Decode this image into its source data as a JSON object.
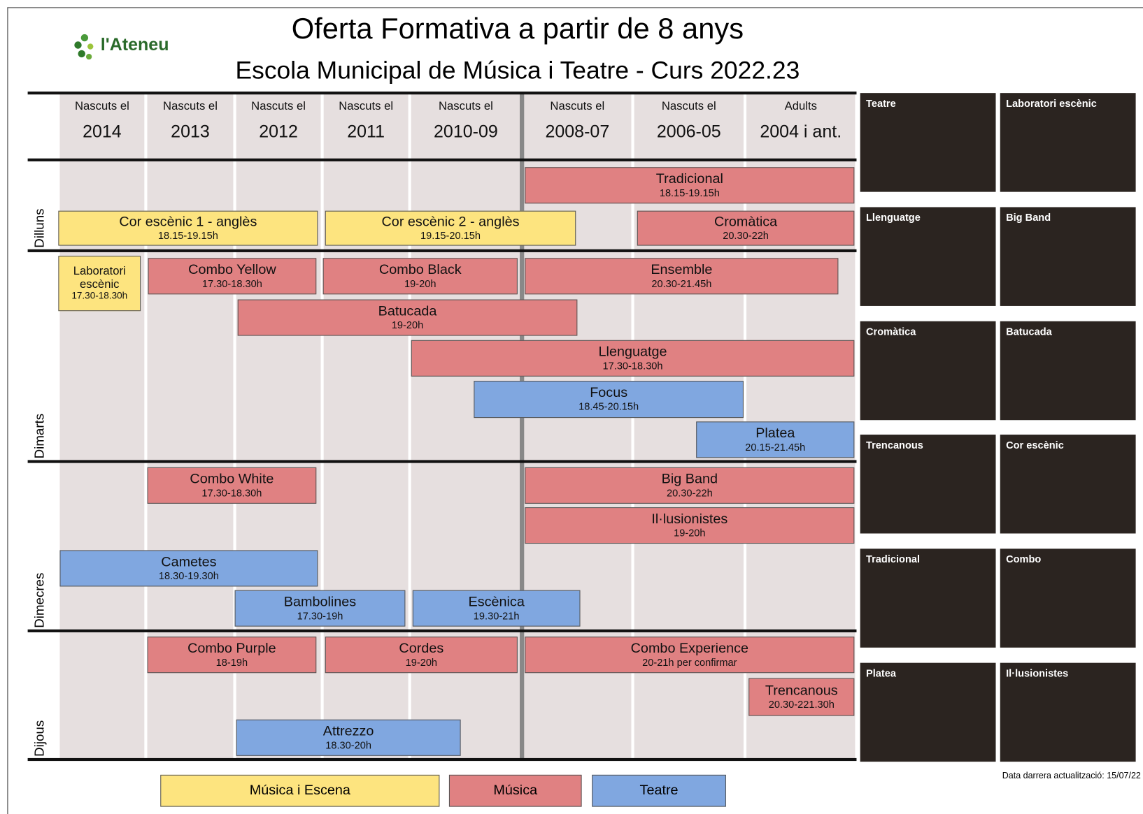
{
  "header": {
    "logo": "l'Ateneu",
    "title": "Oferta Formativa a partir de 8 anys",
    "subtitle": "Escola Municipal de Música i Teatre - Curs 2022.23"
  },
  "columns": [
    {
      "label": "Nascuts el",
      "year": "2014"
    },
    {
      "label": "Nascuts el",
      "year": "2013"
    },
    {
      "label": "Nascuts el",
      "year": "2012"
    },
    {
      "label": "Nascuts el",
      "year": "2011"
    },
    {
      "label": "Nascuts el",
      "year": "2010-09"
    },
    {
      "label": "Nascuts el",
      "year": "2008-07"
    },
    {
      "label": "Nascuts el",
      "year": "2006-05"
    },
    {
      "label": "Adults",
      "year": "2004 i ant."
    }
  ],
  "categories": [
    {
      "name": "Música i Escena",
      "color": "#fde47f"
    },
    {
      "name": "Música",
      "color": "#e08182"
    },
    {
      "name": "Teatre",
      "color": "#80a7e0"
    }
  ],
  "days": [
    {
      "name": "Dilluns",
      "events": [
        {
          "name": "Tradicional",
          "time": "18.15-19.15h",
          "category": 1
        },
        {
          "name": "Cor escènic 1 - anglès",
          "time": "18.15-19.15h",
          "category": 0
        },
        {
          "name": "Cor escènic 2 - anglès",
          "time": "19.15-20.15h",
          "category": 0
        },
        {
          "name": "Cromàtica",
          "time": "20.30-22h",
          "category": 1
        }
      ]
    },
    {
      "name": "Dimarts",
      "events": [
        {
          "name": "Laboratori escènic",
          "time": "17.30-18.30h",
          "category": 0
        },
        {
          "name": "Combo Yellow",
          "time": "17.30-18.30h",
          "category": 1
        },
        {
          "name": "Combo Black",
          "time": "19-20h",
          "category": 1
        },
        {
          "name": "Ensemble",
          "time": "20.30-21.45h",
          "category": 1
        },
        {
          "name": "Batucada",
          "time": "19-20h",
          "category": 1
        },
        {
          "name": "Llenguatge",
          "time": "17.30-18.30h",
          "category": 1
        },
        {
          "name": "Focus",
          "time": "18.45-20.15h",
          "category": 2
        },
        {
          "name": "Platea",
          "time": "20.15-21.45h",
          "category": 2
        }
      ]
    },
    {
      "name": "Dimecres",
      "events": [
        {
          "name": "Combo White",
          "time": "17.30-18.30h",
          "category": 1
        },
        {
          "name": "Big Band",
          "time": "20.30-22h",
          "category": 1
        },
        {
          "name": "Il·lusionistes",
          "time": "19-20h",
          "category": 1
        },
        {
          "name": "Cametes",
          "time": "18.30-19.30h",
          "category": 2
        },
        {
          "name": "Bambolines",
          "time": "17.30-19h",
          "category": 2
        },
        {
          "name": "Escènica",
          "time": "19.30-21h",
          "category": 2
        }
      ]
    },
    {
      "name": "Dijous",
      "events": [
        {
          "name": "Combo Purple",
          "time": "18-19h",
          "category": 1
        },
        {
          "name": "Cordes",
          "time": "19-20h",
          "category": 1
        },
        {
          "name": "Combo Experience",
          "time": "20-21h per confirmar",
          "category": 1
        },
        {
          "name": "Trencanous",
          "time": "20.30-221.30h",
          "category": 1
        },
        {
          "name": "Attrezzo",
          "time": "18.30-20h",
          "category": 2
        }
      ]
    }
  ],
  "photos": [
    "Teatre",
    "Laboratori escènic",
    "Llenguatge",
    "Big Band",
    "Cromàtica",
    "Batucada",
    "Trencanous",
    "Cor escènic",
    "Tradicional",
    "Combo",
    "Platea",
    "Il·lusionistes"
  ],
  "updated": "Data darrera actualització: 15/07/22"
}
